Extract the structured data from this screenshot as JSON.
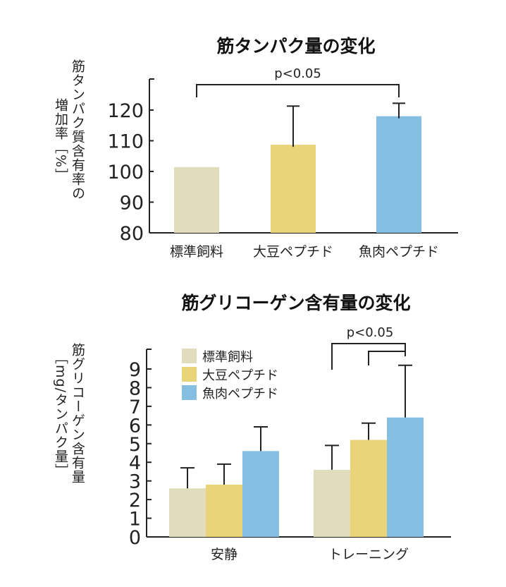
{
  "chart_data": [
    {
      "type": "bar",
      "title": "筋タンパク量の変化",
      "ylabel_lines": [
        "筋タンパク質含有率の",
        "増加率［%］"
      ],
      "xlabel": "",
      "categories": [
        "標準飼料",
        "大豆ペプチド",
        "魚肉ペプチド"
      ],
      "values": [
        101.4,
        108.7,
        118.0
      ],
      "error_upper": [
        null,
        121.3,
        122.2
      ],
      "colors": [
        "#e0dcbc",
        "#e9d47a",
        "#84bfe2"
      ],
      "ylim": [
        80,
        128
      ],
      "yticks": [
        80,
        90,
        100,
        110,
        120
      ],
      "grid": false,
      "significance": [
        {
          "from": 0,
          "to": 2,
          "label": "p<0.05"
        }
      ]
    },
    {
      "type": "bar",
      "title": "筋グリコーゲン含有量の変化",
      "ylabel_lines": [
        "筋グリコーゲン含有量",
        "［mg/タンパク量］"
      ],
      "xlabel": "",
      "categories": [
        "安静",
        "トレーニング"
      ],
      "series": [
        {
          "name": "標準飼料",
          "color": "#e0dcbc",
          "values": [
            2.6,
            3.6
          ],
          "error_upper": [
            3.7,
            4.9
          ]
        },
        {
          "name": "大豆ペプチド",
          "color": "#e9d47a",
          "values": [
            2.8,
            5.2
          ],
          "error_upper": [
            3.9,
            6.1
          ]
        },
        {
          "name": "魚肉ペプチド",
          "color": "#84bfe2",
          "values": [
            4.6,
            6.4
          ],
          "error_upper": [
            5.9,
            9.2
          ]
        }
      ],
      "ylim": [
        0,
        10
      ],
      "yticks": [
        0,
        1,
        2,
        3,
        4,
        5,
        6,
        7,
        8,
        9
      ],
      "grid": false,
      "legend_position": "top-left",
      "significance": [
        {
          "category": 1,
          "pairs": [
            [
              0,
              2
            ],
            [
              1,
              2
            ]
          ],
          "label": "p<0.05"
        }
      ]
    }
  ]
}
